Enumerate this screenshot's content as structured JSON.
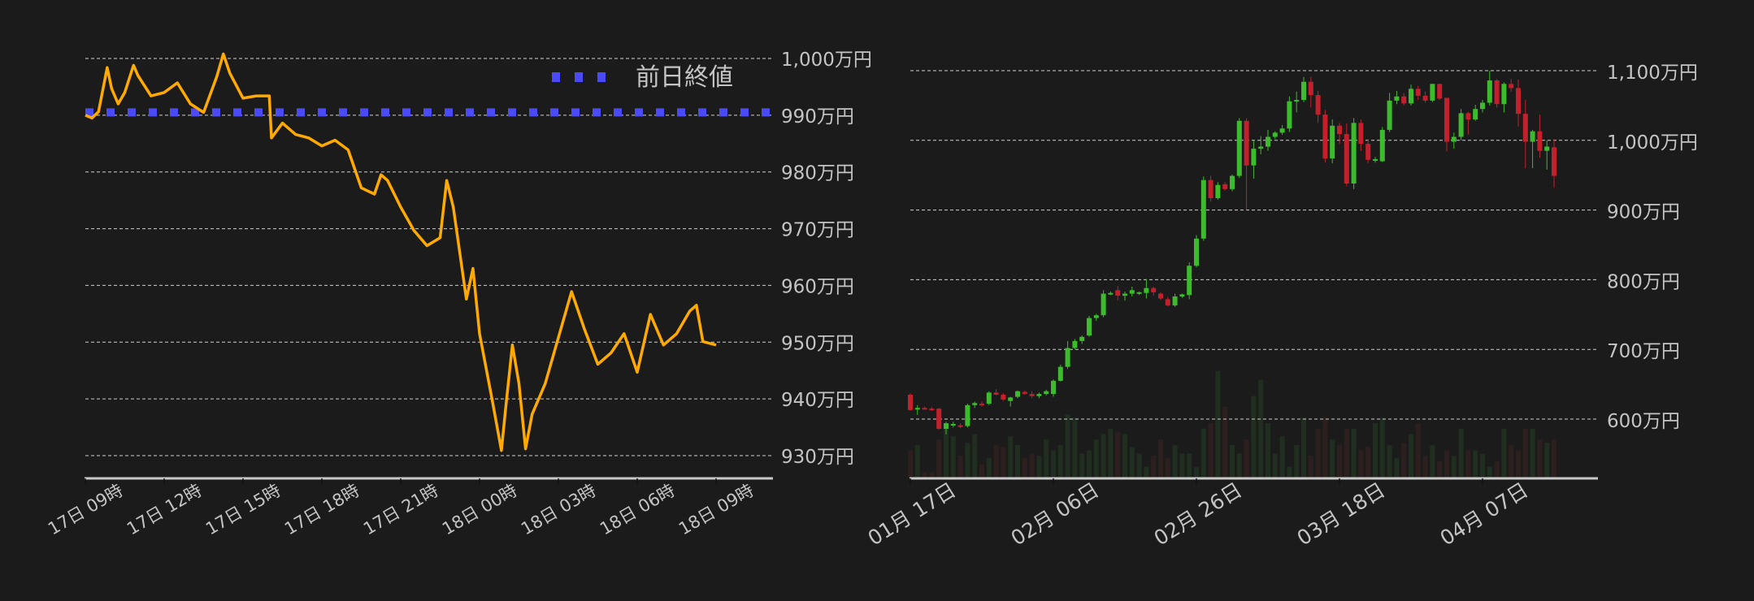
{
  "chart_data": [
    {
      "type": "line",
      "title": "",
      "xlabel": "",
      "ylabel": "",
      "ylim": [
        926,
        1002
      ],
      "grid": true,
      "line_color": "#ffaa00",
      "y_ticks": [
        {
          "value": 1000,
          "label": "1,000万円"
        },
        {
          "value": 990,
          "label": "990万円"
        },
        {
          "value": 980,
          "label": "980万円"
        },
        {
          "value": 970,
          "label": "970万円"
        },
        {
          "value": 960,
          "label": "960万円"
        },
        {
          "value": 950,
          "label": "950万円"
        },
        {
          "value": 940,
          "label": "940万円"
        },
        {
          "value": 930,
          "label": "930万円"
        }
      ],
      "x_ticks": [
        {
          "value": "17日 09:00",
          "label": "17日 09時"
        },
        {
          "value": "17日 12:00",
          "label": "17日 12時"
        },
        {
          "value": "17日 15:00",
          "label": "17日 15時"
        },
        {
          "value": "17日 18:00",
          "label": "17日 18時"
        },
        {
          "value": "17日 21:00",
          "label": "17日 21時"
        },
        {
          "value": "18日 00:00",
          "label": "18日 00時"
        },
        {
          "value": "18日 03:00",
          "label": "18日 03時"
        },
        {
          "value": "18日 06:00",
          "label": "18日 06時"
        },
        {
          "value": "18日 09:00",
          "label": "18日 09時"
        }
      ],
      "reference_line": {
        "name": "前日終値",
        "value": 990.5,
        "color": "#4b4bf5"
      },
      "legend": {
        "position": "top-right",
        "label": "前日終値"
      },
      "series": [
        {
          "points": [
            [
              "17日 09:00",
              990
            ],
            [
              "17日 09:15",
              989.5
            ],
            [
              "17日 09:30",
              990.6
            ],
            [
              "17日 09:50",
              998.4
            ],
            [
              "17日 10:00",
              994.7
            ],
            [
              "17日 10:15",
              992
            ],
            [
              "17日 10:30",
              994
            ],
            [
              "17日 10:50",
              998.8
            ],
            [
              "17日 11:00",
              997
            ],
            [
              "17日 11:30",
              993.4
            ],
            [
              "17日 12:00",
              994
            ],
            [
              "17日 12:30",
              995.7
            ],
            [
              "17日 13:00",
              992
            ],
            [
              "17日 13:30",
              990.5
            ],
            [
              "17日 14:00",
              996.8
            ],
            [
              "17日 14:15",
              1000.8
            ],
            [
              "17日 14:30",
              997.4
            ],
            [
              "17日 15:00",
              993
            ],
            [
              "17日 15:30",
              993.4
            ],
            [
              "17日 16:00",
              993.4
            ],
            [
              "17日 16:05",
              986
            ],
            [
              "17日 16:30",
              988.6
            ],
            [
              "17日 17:00",
              986.6
            ],
            [
              "17日 17:30",
              986
            ],
            [
              "17日 18:00",
              984.6
            ],
            [
              "17日 18:30",
              985.6
            ],
            [
              "17日 19:00",
              983.9
            ],
            [
              "17日 19:30",
              977.2
            ],
            [
              "17日 20:00",
              976.1
            ],
            [
              "17日 20:15",
              979.5
            ],
            [
              "17日 20:30",
              978.5
            ],
            [
              "17日 21:00",
              973.8
            ],
            [
              "17日 21:30",
              969.7
            ],
            [
              "17日 22:00",
              967
            ],
            [
              "17日 22:30",
              968.4
            ],
            [
              "17日 22:45",
              978.5
            ],
            [
              "17日 23:00",
              973.8
            ],
            [
              "17日 23:30",
              957.6
            ],
            [
              "17日 23:45",
              963
            ],
            [
              "18日 00:00",
              951.5
            ],
            [
              "18日 00:30",
              939.3
            ],
            [
              "18日 00:50",
              930.9
            ],
            [
              "18日 01:00",
              938.6
            ],
            [
              "18日 01:15",
              949.5
            ],
            [
              "18日 01:30",
              942.7
            ],
            [
              "18日 01:45",
              931.2
            ],
            [
              "18日 02:00",
              937.3
            ],
            [
              "18日 02:30",
              942.7
            ],
            [
              "18日 03:00",
              950.8
            ],
            [
              "18日 03:30",
              958.9
            ],
            [
              "18日 04:00",
              952.2
            ],
            [
              "18日 04:30",
              946.1
            ],
            [
              "18日 05:00",
              948.1
            ],
            [
              "18日 05:30",
              951.5
            ],
            [
              "18日 06:00",
              944.7
            ],
            [
              "18日 06:30",
              954.9
            ],
            [
              "18日 07:00",
              949.5
            ],
            [
              "18日 07:30",
              951.5
            ],
            [
              "18日 08:00",
              955.5
            ],
            [
              "18日 08:15",
              956.5
            ],
            [
              "18日 08:30",
              950.1
            ],
            [
              "18日 09:00",
              949.5
            ]
          ]
        }
      ]
    },
    {
      "type": "candlestick",
      "title": "",
      "xlabel": "",
      "ylabel": "",
      "ylim": [
        485,
        1105
      ],
      "grid": true,
      "up_color": "#3cbc2c",
      "down_color": "#c4202c",
      "volume_up_color": "#1f2e1f",
      "volume_down_color": "#2e1f1f",
      "y_ticks": [
        {
          "value": 1100,
          "label": "1,100万円"
        },
        {
          "value": 1000,
          "label": "1,000万円"
        },
        {
          "value": 900,
          "label": "900万円"
        },
        {
          "value": 800,
          "label": "800万円"
        },
        {
          "value": 700,
          "label": "700万円"
        },
        {
          "value": 600,
          "label": "600万円"
        }
      ],
      "x_ticks": [
        {
          "value": "01/17",
          "label": "01月 17日"
        },
        {
          "value": "02/06",
          "label": "02月 06日"
        },
        {
          "value": "02/26",
          "label": "02月 26日"
        },
        {
          "value": "03/18",
          "label": "03月 18日"
        },
        {
          "value": "04/07",
          "label": "04月 07日"
        }
      ],
      "dates": [
        "01/17",
        "01/18",
        "01/19",
        "01/20",
        "01/21",
        "01/22",
        "01/23",
        "01/24",
        "01/25",
        "01/26",
        "01/27",
        "01/28",
        "01/29",
        "01/30",
        "01/31",
        "02/01",
        "02/02",
        "02/03",
        "02/04",
        "02/05",
        "02/06",
        "02/07",
        "02/08",
        "02/09",
        "02/10",
        "02/11",
        "02/12",
        "02/13",
        "02/14",
        "02/15",
        "02/16",
        "02/17",
        "02/18",
        "02/19",
        "02/20",
        "02/21",
        "02/22",
        "02/23",
        "02/24",
        "02/25",
        "02/26",
        "02/27",
        "02/28",
        "03/01",
        "03/02",
        "03/03",
        "03/04",
        "03/05",
        "03/06",
        "03/07",
        "03/08",
        "03/09",
        "03/10",
        "03/11",
        "03/12",
        "03/13",
        "03/14",
        "03/15",
        "03/16",
        "03/17",
        "03/18",
        "03/19",
        "03/20",
        "03/21",
        "03/22",
        "03/23",
        "03/24",
        "03/25",
        "03/26",
        "03/27",
        "03/28",
        "03/29",
        "03/30",
        "03/31",
        "04/01",
        "04/02",
        "04/03",
        "04/04",
        "04/05",
        "04/06",
        "04/07",
        "04/08",
        "04/09",
        "04/10",
        "04/11",
        "04/12",
        "04/13",
        "04/14",
        "04/15",
        "04/16",
        "04/17"
      ],
      "ohlc": [
        [
          635,
          637,
          612,
          613
        ],
        [
          614,
          620,
          606,
          616
        ],
        [
          616,
          618,
          614,
          615
        ],
        [
          615,
          617,
          612,
          613
        ],
        [
          615,
          616,
          585,
          586
        ],
        [
          586,
          596,
          578,
          594
        ],
        [
          592,
          596,
          588,
          593
        ],
        [
          591,
          594,
          587,
          590
        ],
        [
          590,
          622,
          588,
          620
        ],
        [
          620,
          625,
          616,
          623
        ],
        [
          622,
          625,
          618,
          621
        ],
        [
          622,
          640,
          620,
          638
        ],
        [
          638,
          643,
          634,
          635
        ],
        [
          635,
          637,
          626,
          628
        ],
        [
          626,
          632,
          618,
          631
        ],
        [
          632,
          641,
          630,
          640
        ],
        [
          639,
          641,
          635,
          636
        ],
        [
          636,
          640,
          630,
          633
        ],
        [
          633,
          638,
          630,
          636
        ],
        [
          636,
          642,
          634,
          640
        ],
        [
          636,
          657,
          632,
          655
        ],
        [
          655,
          678,
          654,
          675
        ],
        [
          675,
          712,
          672,
          702
        ],
        [
          702,
          715,
          700,
          712
        ],
        [
          712,
          720,
          708,
          718
        ],
        [
          720,
          748,
          718,
          745
        ],
        [
          745,
          751,
          741,
          749
        ],
        [
          749,
          785,
          746,
          780
        ],
        [
          780,
          783,
          778,
          781
        ],
        [
          785,
          791,
          770,
          777
        ],
        [
          777,
          783,
          770,
          780
        ],
        [
          780,
          790,
          776,
          785
        ],
        [
          781,
          783,
          778,
          782
        ],
        [
          781,
          801,
          773,
          788
        ],
        [
          788,
          790,
          777,
          782
        ],
        [
          780,
          782,
          771,
          773
        ],
        [
          772,
          775,
          762,
          763
        ],
        [
          763,
          780,
          761,
          776
        ],
        [
          776,
          780,
          774,
          779
        ],
        [
          778,
          825,
          772,
          820
        ],
        [
          820,
          864,
          818,
          859
        ],
        [
          859,
          948,
          856,
          943
        ],
        [
          943,
          949,
          912,
          917
        ],
        [
          917,
          940,
          915,
          936
        ],
        [
          937,
          940,
          928,
          930
        ],
        [
          930,
          951,
          927,
          949
        ],
        [
          949,
          1032,
          946,
          1028
        ],
        [
          1028,
          1032,
          900,
          964
        ],
        [
          964,
          1000,
          945,
          988
        ],
        [
          988,
          1006,
          980,
          991
        ],
        [
          991,
          1015,
          985,
          1005
        ],
        [
          1005,
          1013,
          1002,
          1011
        ],
        [
          1011,
          1022,
          1008,
          1017
        ],
        [
          1017,
          1063,
          1012,
          1056
        ],
        [
          1056,
          1070,
          1040,
          1058
        ],
        [
          1058,
          1091,
          1055,
          1084
        ],
        [
          1084,
          1091,
          1047,
          1065
        ],
        [
          1065,
          1071,
          1025,
          1037
        ],
        [
          1037,
          1044,
          968,
          974
        ],
        [
          974,
          1030,
          967,
          1021
        ],
        [
          1021,
          1025,
          995,
          1009
        ],
        [
          1009,
          1024,
          934,
          938
        ],
        [
          938,
          1032,
          930,
          1025
        ],
        [
          1025,
          1030,
          985,
          995
        ],
        [
          995,
          1002,
          967,
          972
        ],
        [
          972,
          976,
          968,
          973
        ],
        [
          970,
          1019,
          969,
          1015
        ],
        [
          1015,
          1068,
          1012,
          1057
        ],
        [
          1057,
          1071,
          1052,
          1063
        ],
        [
          1063,
          1068,
          1050,
          1053
        ],
        [
          1053,
          1080,
          1050,
          1074
        ],
        [
          1074,
          1078,
          1058,
          1064
        ],
        [
          1064,
          1070,
          1054,
          1057
        ],
        [
          1057,
          1081,
          1055,
          1081
        ],
        [
          1081,
          1081,
          1058,
          1060
        ],
        [
          1061,
          1061,
          984,
          998
        ],
        [
          998,
          1011,
          988,
          1005
        ],
        [
          1005,
          1045,
          1000,
          1039
        ],
        [
          1039,
          1041,
          1008,
          1030
        ],
        [
          1030,
          1051,
          1028,
          1045
        ],
        [
          1045,
          1058,
          1040,
          1054
        ],
        [
          1054,
          1100,
          1050,
          1086
        ],
        [
          1086,
          1088,
          1047,
          1052
        ],
        [
          1052,
          1083,
          1040,
          1081
        ],
        [
          1081,
          1088,
          1070,
          1075
        ],
        [
          1075,
          1087,
          1020,
          1038
        ],
        [
          1038,
          1058,
          960,
          998
        ],
        [
          998,
          1015,
          960,
          1013
        ],
        [
          1013,
          1037,
          975,
          985
        ],
        [
          985,
          1000,
          958,
          991
        ],
        [
          990,
          1002,
          932,
          949
        ]
      ],
      "volume": [
        25,
        30,
        5,
        5,
        35,
        50,
        38,
        20,
        32,
        40,
        12,
        18,
        30,
        28,
        38,
        30,
        18,
        22,
        20,
        35,
        25,
        30,
        58,
        55,
        22,
        25,
        35,
        40,
        45,
        42,
        40,
        28,
        22,
        10,
        20,
        35,
        18,
        30,
        22,
        22,
        10,
        45,
        50,
        98,
        65,
        30,
        22,
        35,
        75,
        90,
        50,
        22,
        38,
        10,
        30,
        55,
        20,
        45,
        55,
        35,
        30,
        45,
        45,
        25,
        28,
        50,
        55,
        30,
        18,
        32,
        40,
        50,
        20,
        30,
        15,
        25,
        20,
        45,
        25,
        25,
        22,
        10,
        15,
        45,
        30,
        25,
        45,
        45,
        35,
        32,
        35
      ]
    }
  ]
}
